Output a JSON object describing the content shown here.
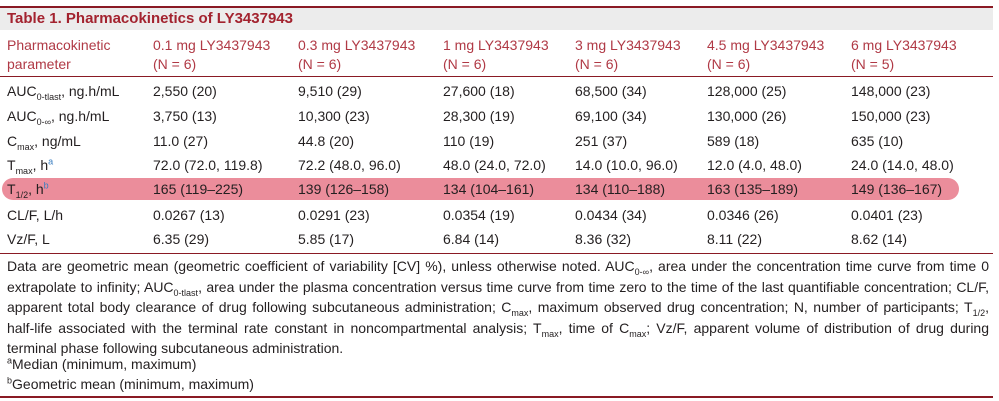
{
  "table": {
    "title": "Table 1.  Pharmacokinetics of LY3437943",
    "header": [
      {
        "line1": "Pharmacokinetic",
        "line2": "parameter"
      },
      {
        "line1": "0.1 mg LY3437943",
        "line2": "(N = 6)"
      },
      {
        "line1": "0.3 mg LY3437943",
        "line2": "(N = 6)"
      },
      {
        "line1": "1 mg LY3437943",
        "line2": "(N = 6)"
      },
      {
        "line1": "3 mg LY3437943",
        "line2": "(N = 6)"
      },
      {
        "line1": "4.5 mg LY3437943",
        "line2": "(N = 6)"
      },
      {
        "line1": "6 mg LY3437943",
        "line2": "(N = 5)"
      }
    ],
    "rows": [
      {
        "param_main": "AUC",
        "param_sub": "0-tlast",
        "param_rest": ", ng.h/mL",
        "param_sup": "",
        "values": [
          "2,550 (20)",
          "9,510 (29)",
          "27,600 (18)",
          "68,500 (34)",
          "128,000 (25)",
          "148,000 (23)"
        ]
      },
      {
        "param_main": "AUC",
        "param_sub": "0-∞",
        "param_rest": ", ng.h/mL",
        "param_sup": "",
        "values": [
          "3,750 (13)",
          "10,300 (23)",
          "28,300 (19)",
          "69,100 (34)",
          "130,000 (26)",
          "150,000 (23)"
        ]
      },
      {
        "param_main": "C",
        "param_sub": "max",
        "param_rest": ", ng/mL",
        "param_sup": "",
        "values": [
          "11.0 (27)",
          "44.8 (20)",
          "110 (19)",
          "251 (37)",
          "589 (18)",
          "635 (10)"
        ]
      },
      {
        "param_main": "T",
        "param_sub": "max",
        "param_rest": ", h",
        "param_sup": "a",
        "values": [
          "72.0 (72.0, 119.8)",
          "72.2 (48.0, 96.0)",
          "48.0 (24.0, 72.0)",
          "14.0 (10.0, 96.0)",
          "12.0 (4.0, 48.0)",
          "24.0 (14.0, 48.0)"
        ]
      },
      {
        "param_main": "T",
        "param_sub": "1/2",
        "param_rest": ", h",
        "param_sup": "b",
        "values": [
          "165 (119–225)",
          "139 (126–158)",
          "134 (104–161)",
          "134 (110–188)",
          "163 (135–189)",
          "149 (136–167)"
        ]
      },
      {
        "param_main": "CL/F, L/h",
        "param_sub": "",
        "param_rest": "",
        "param_sup": "",
        "values": [
          "0.0267 (13)",
          "0.0291 (23)",
          "0.0354 (19)",
          "0.0434 (34)",
          "0.0346 (26)",
          "0.0401 (23)"
        ]
      },
      {
        "param_main": "Vz/F, L",
        "param_sub": "",
        "param_rest": "",
        "param_sup": "",
        "values": [
          "6.35 (29)",
          "5.85 (17)",
          "6.84 (14)",
          "8.36 (32)",
          "8.11 (22)",
          "8.62 (14)"
        ]
      }
    ]
  },
  "notes": {
    "main_parts": [
      "Data are geometric mean (geometric coefficient of variability [CV] %), unless otherwise noted. AUC",
      "0-∞",
      ", area under the concentration time curve from time 0 extrapolate to infinity; AUC",
      "0-tlast",
      ", area under the plasma concentration versus time curve from time zero to the time of the last quantifiable concentration; CL/F, apparent total body clearance of drug following subcutaneous administration; C",
      "max",
      ", maximum observed drug concentration; N, number of participants; T",
      "1/2",
      ", half-life associated with the terminal rate constant in noncompartmental analysis; T",
      "max",
      ", time of C",
      "max",
      "; Vz/F, apparent volume of distribution of drug during terminal phase following subcutaneous administration."
    ],
    "footnote_a_mark": "a",
    "footnote_a": "Median (minimum, maximum)",
    "footnote_b_mark": "b",
    "footnote_b": "Geometric mean (minimum, maximum)"
  },
  "colors": {
    "title": "#a3232f",
    "header_text": "#b03945",
    "highlight": "#e8798a",
    "rule": "#8a1a24"
  }
}
